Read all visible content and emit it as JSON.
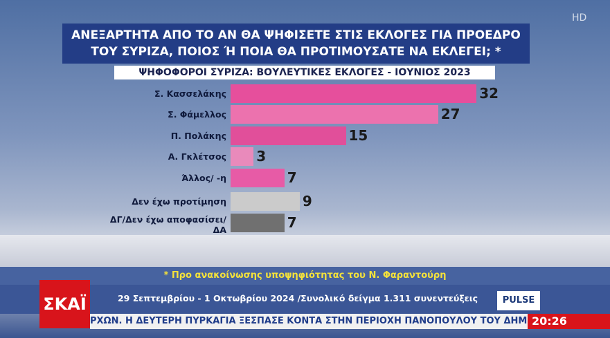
{
  "chart_data": {
    "type": "bar",
    "orientation": "horizontal",
    "title": "ΑΝΕΞΑΡΤΗΤΑ ΑΠΟ ΤΟ ΑΝ ΘΑ ΨΗΦΙΣΕΤΕ ΣΤΙΣ ΕΚΛΟΓΕΣ ΓΙΑ ΠΡΟΕΔΡΟ ΤΟΥ ΣΥΡΙΖΑ, ΠΟΙΟΣ Ή ΠΟΙΑ ΘΑ ΠΡΟΤΙΜΟΥΣΑΤΕ ΝΑ ΕΚΛΕΓΕΙ; *",
    "subtitle": "ΨΗΦΟΦΟΡΟΙ ΣΥΡΙΖΑ: ΒΟΥΛΕΥΤΙΚΕΣ ΕΚΛΟΓΕΣ - ΙΟΥΝΙΟΣ 2023",
    "categories": [
      "Σ. Κασσελάκης",
      "Σ. Φάμελλος",
      "Π. Πολάκης",
      "Α. Γκλέτσος",
      "Άλλος/ -η",
      "Δεν έχω προτίμηση",
      "ΔΓ/Δεν έχω αποφασίσει/ ΔΑ"
    ],
    "values": [
      32,
      27,
      15,
      3,
      7,
      9,
      7
    ],
    "colors": [
      "#e64f9c",
      "#ec72ae",
      "#e14f9a",
      "#e98abb",
      "#e75ba6",
      "#cbcbcb",
      "#707070"
    ]
  },
  "footnote": "* Προ ανακοίνωσης υποψηφιότητας του Ν. Φαραντούρη",
  "sample": "29 Σεπτεμβρίου - 1 Οκτωβρίου 2024 /Συνολικό δείγμα 1.311 συνεντεύξεις",
  "channel": "ΣΚΑΪ",
  "pollster": "PULSE",
  "ticker": "ΡΧΩΝ. Η ΔΕΥΤΕΡΗ ΠΥΡΚΑΓΙΑ ΞΕΣΠΑΣΕ ΚΟΝΤΑ ΣΤΗΝ ΠΕΡΙΟΧΗ ΠΑΝΟΠΟΥΛΟΥ ΤΟΥ ΔΗΜΟΥ ΑΡ",
  "time": "20:26",
  "badge": "HD"
}
